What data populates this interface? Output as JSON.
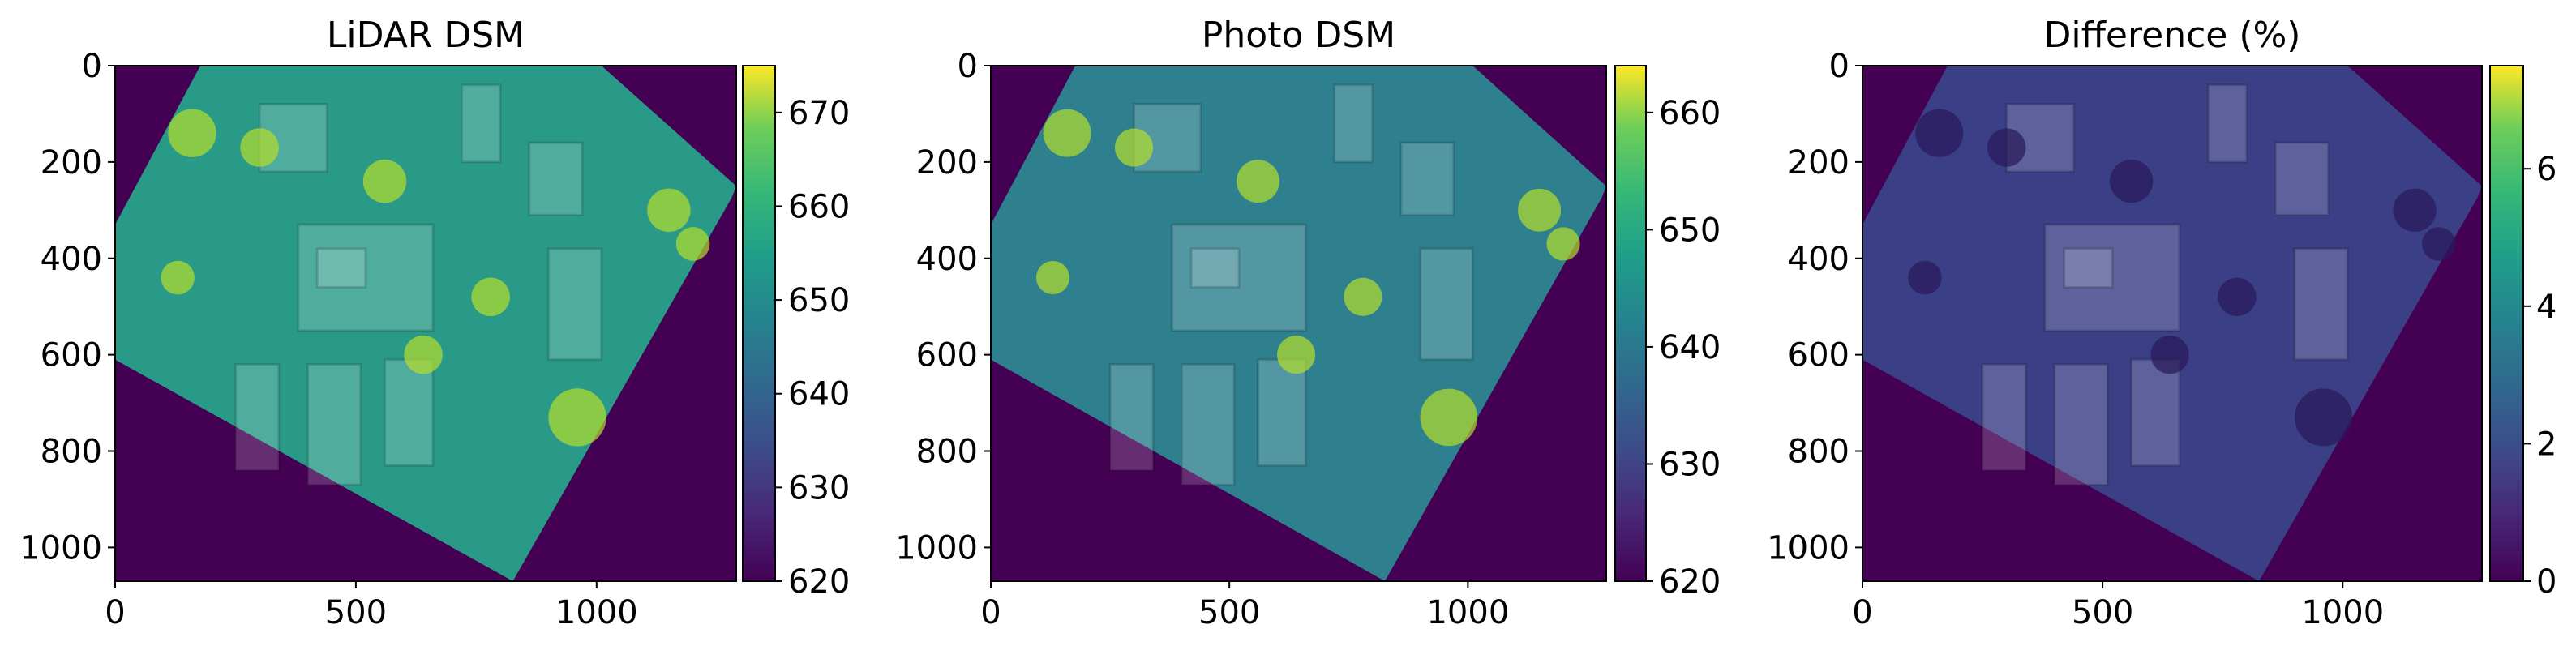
{
  "chart_data": [
    {
      "type": "heatmap",
      "title": "LiDAR DSM",
      "xlim": [
        0,
        1290
      ],
      "ylim": [
        1070,
        0
      ],
      "xticks": [
        0,
        500,
        1000
      ],
      "yticks": [
        0,
        200,
        400,
        600,
        800,
        1000
      ],
      "clim": [
        620,
        675
      ],
      "cticks": [
        620,
        630,
        640,
        650,
        660,
        670
      ],
      "colormap": "viridis",
      "fill": "#2a9a88"
    },
    {
      "type": "heatmap",
      "title": "Photo DSM",
      "xlim": [
        0,
        1290
      ],
      "ylim": [
        1070,
        0
      ],
      "xticks": [
        0,
        500,
        1000
      ],
      "yticks": [
        0,
        200,
        400,
        600,
        800,
        1000
      ],
      "clim": [
        620,
        664
      ],
      "cticks": [
        620,
        630,
        640,
        650,
        660
      ],
      "colormap": "viridis",
      "fill": "#2e808e"
    },
    {
      "type": "heatmap",
      "title": "Difference (%)",
      "xlim": [
        0,
        1290
      ],
      "ylim": [
        1070,
        0
      ],
      "xticks": [
        0,
        500,
        1000
      ],
      "yticks": [
        0,
        200,
        400,
        600,
        800,
        1000
      ],
      "clim": [
        0,
        7.5
      ],
      "cticks": [
        0,
        2,
        4,
        6
      ],
      "colormap": "viridis",
      "fill": "#3b3f86"
    }
  ]
}
